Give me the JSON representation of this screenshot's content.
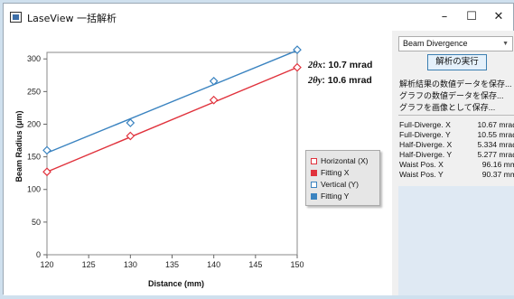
{
  "window": {
    "title": "LaseView 一括解析",
    "controls": [
      "–",
      "☐",
      "✕"
    ]
  },
  "panel": {
    "dropdown_value": "Beam Divergence",
    "run_button": "解析の実行",
    "links": [
      "解析結果の数値データを保存...",
      "グラフの数値データを保存...",
      "グラフを画像として保存..."
    ],
    "stats": [
      {
        "label": "Full-Diverge. X",
        "value": "10.67 mrad"
      },
      {
        "label": "Full-Diverge. Y",
        "value": "10.55 mrad"
      },
      {
        "label": "Half-Diverge. X",
        "value": "5.334 mrad"
      },
      {
        "label": "Half-Diverge. Y",
        "value": "5.277 mrad"
      },
      {
        "label": "Waist Pos. X",
        "value": "96.16 mm"
      },
      {
        "label": "Waist Pos. Y",
        "value": "90.37 mm"
      }
    ]
  },
  "annotations": {
    "theta_x": {
      "symbol": "2θx",
      "text": ": 10.7 mrad"
    },
    "theta_y": {
      "symbol": "2θy",
      "text": ": 10.6 mrad"
    }
  },
  "chart_data": {
    "type": "scatter",
    "xlabel": "Distance (mm)",
    "ylabel": "Beam Radius (μm)",
    "xlim": [
      120,
      150
    ],
    "ylim": [
      0,
      310
    ],
    "xticks": [
      120,
      125,
      130,
      135,
      140,
      145,
      150
    ],
    "yticks": [
      0,
      50,
      100,
      150,
      200,
      250,
      300
    ],
    "grid": false,
    "legend_position": "right",
    "series": [
      {
        "name": "Horizontal (X)",
        "kind": "points",
        "color": "#e0323c",
        "x": [
          120,
          130,
          140,
          150
        ],
        "y": [
          127,
          182,
          237,
          287
        ]
      },
      {
        "name": "Fitting X",
        "kind": "line",
        "color": "#e0323c",
        "x": [
          120,
          150
        ],
        "y": [
          127,
          287
        ]
      },
      {
        "name": "Vertical (Y)",
        "kind": "points",
        "color": "#3a83c0",
        "x": [
          120,
          130,
          140,
          150
        ],
        "y": [
          160,
          202,
          266,
          314
        ]
      },
      {
        "name": "Fitting Y",
        "kind": "line",
        "color": "#3a83c0",
        "x": [
          120,
          150
        ],
        "y": [
          156,
          313
        ]
      }
    ],
    "legend": [
      {
        "label": "Horizontal (X)",
        "color": "#e0323c",
        "style": "open"
      },
      {
        "label": "Fitting X",
        "color": "#e0323c",
        "style": "filled"
      },
      {
        "label": "Vertical (Y)",
        "color": "#3a83c0",
        "style": "open"
      },
      {
        "label": "Fitting Y",
        "color": "#3a83c0",
        "style": "filled"
      }
    ]
  }
}
